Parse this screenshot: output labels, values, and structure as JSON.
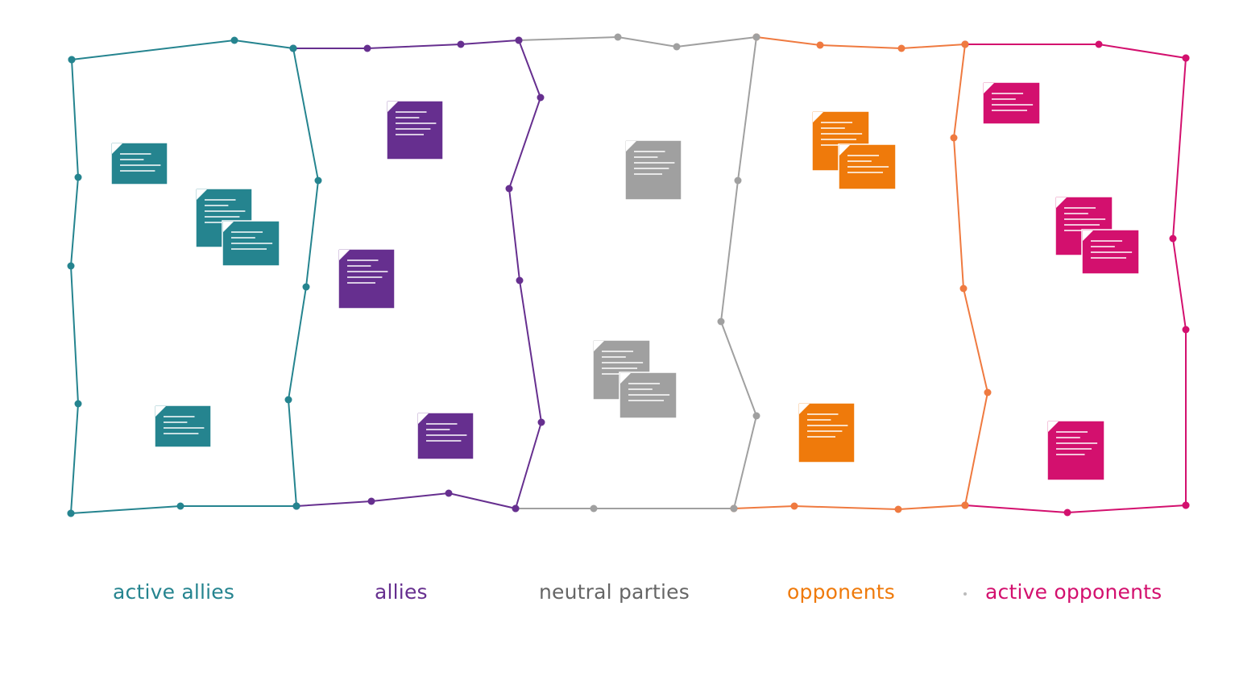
{
  "colors": {
    "active_allies": "#25848f",
    "allies": "#662f8f",
    "neutral": "#a0a0a0",
    "neutral_text": "#666666",
    "opponents": "#ef7a0b",
    "opponents_line": "#ef7a40",
    "active_opponents": "#d3106e"
  },
  "columns": [
    {
      "key": "active_allies",
      "label": "active allies",
      "note_count": 4
    },
    {
      "key": "allies",
      "label": "allies",
      "note_count": 3
    },
    {
      "key": "neutral",
      "label": "neutral parties",
      "note_count": 3
    },
    {
      "key": "opponents",
      "label": "opponents",
      "note_count": 3
    },
    {
      "key": "active_opponents",
      "label": "active opponents",
      "note_count": 4
    }
  ],
  "icon": "sticky-note-icon"
}
